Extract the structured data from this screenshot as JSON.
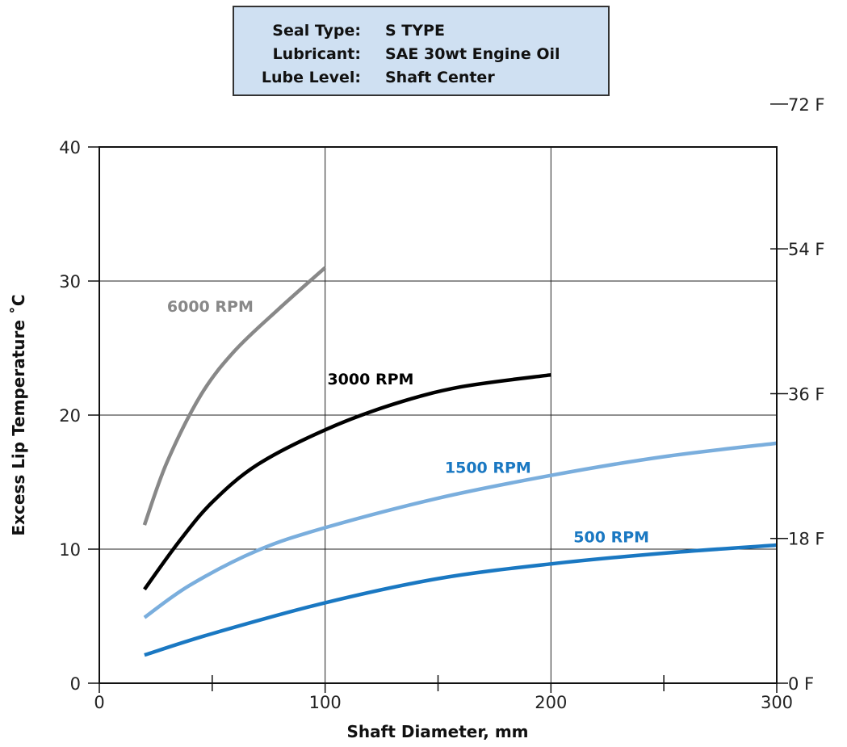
{
  "info": {
    "rows": [
      {
        "key": "Seal Type:",
        "value": "S TYPE"
      },
      {
        "key": "Lubricant:",
        "value": "SAE 30wt Engine Oil"
      },
      {
        "key": "Lube Level:",
        "value": "Shaft Center"
      }
    ]
  },
  "chart_data": {
    "type": "line",
    "title": "",
    "xlabel": "Shaft Diameter, mm",
    "ylabel": "Excess Lip Temperature  ˚C",
    "xlim": [
      0,
      300
    ],
    "ylim": [
      0,
      40
    ],
    "x_ticks": [
      0,
      100,
      200,
      300
    ],
    "x_minor_ticks": [
      50,
      150,
      250
    ],
    "y_ticks": [
      0,
      10,
      20,
      30,
      40
    ],
    "y2_ticks": [
      {
        "label": "0 F",
        "value": 0
      },
      {
        "label": "18 F",
        "value": 10
      },
      {
        "label": "36 F",
        "value": 20
      },
      {
        "label": "54 F",
        "value": 30
      },
      {
        "label": "72 F",
        "value": 40
      }
    ],
    "grid": true,
    "series": [
      {
        "name": "6000 RPM",
        "color": "#888888",
        "label_color": "#888888",
        "label_at": [
          30,
          27.7
        ],
        "points": [
          [
            20,
            11.8
          ],
          [
            30,
            16.5
          ],
          [
            45,
            21.5
          ],
          [
            60,
            24.8
          ],
          [
            80,
            28.0
          ],
          [
            100,
            31.0
          ]
        ]
      },
      {
        "name": "3000 RPM",
        "color": "#000000",
        "label_color": "#000000",
        "label_at": [
          101,
          22.3
        ],
        "points": [
          [
            20,
            7.0
          ],
          [
            35,
            10.5
          ],
          [
            50,
            13.5
          ],
          [
            70,
            16.3
          ],
          [
            100,
            18.9
          ],
          [
            130,
            20.8
          ],
          [
            160,
            22.1
          ],
          [
            200,
            23.0
          ]
        ]
      },
      {
        "name": "1500 RPM",
        "color": "#7aaedd",
        "label_color": "#1a78c2",
        "label_at": [
          153,
          15.7
        ],
        "points": [
          [
            20,
            4.9
          ],
          [
            40,
            7.3
          ],
          [
            70,
            9.9
          ],
          [
            100,
            11.6
          ],
          [
            150,
            13.8
          ],
          [
            200,
            15.5
          ],
          [
            250,
            16.9
          ],
          [
            300,
            17.9
          ]
        ]
      },
      {
        "name": "500 RPM",
        "color": "#1a78c2",
        "label_color": "#1a78c2",
        "label_at": [
          210,
          10.5
        ],
        "points": [
          [
            20,
            2.1
          ],
          [
            50,
            3.7
          ],
          [
            100,
            6.0
          ],
          [
            150,
            7.8
          ],
          [
            200,
            8.9
          ],
          [
            250,
            9.7
          ],
          [
            300,
            10.3
          ]
        ]
      }
    ]
  }
}
